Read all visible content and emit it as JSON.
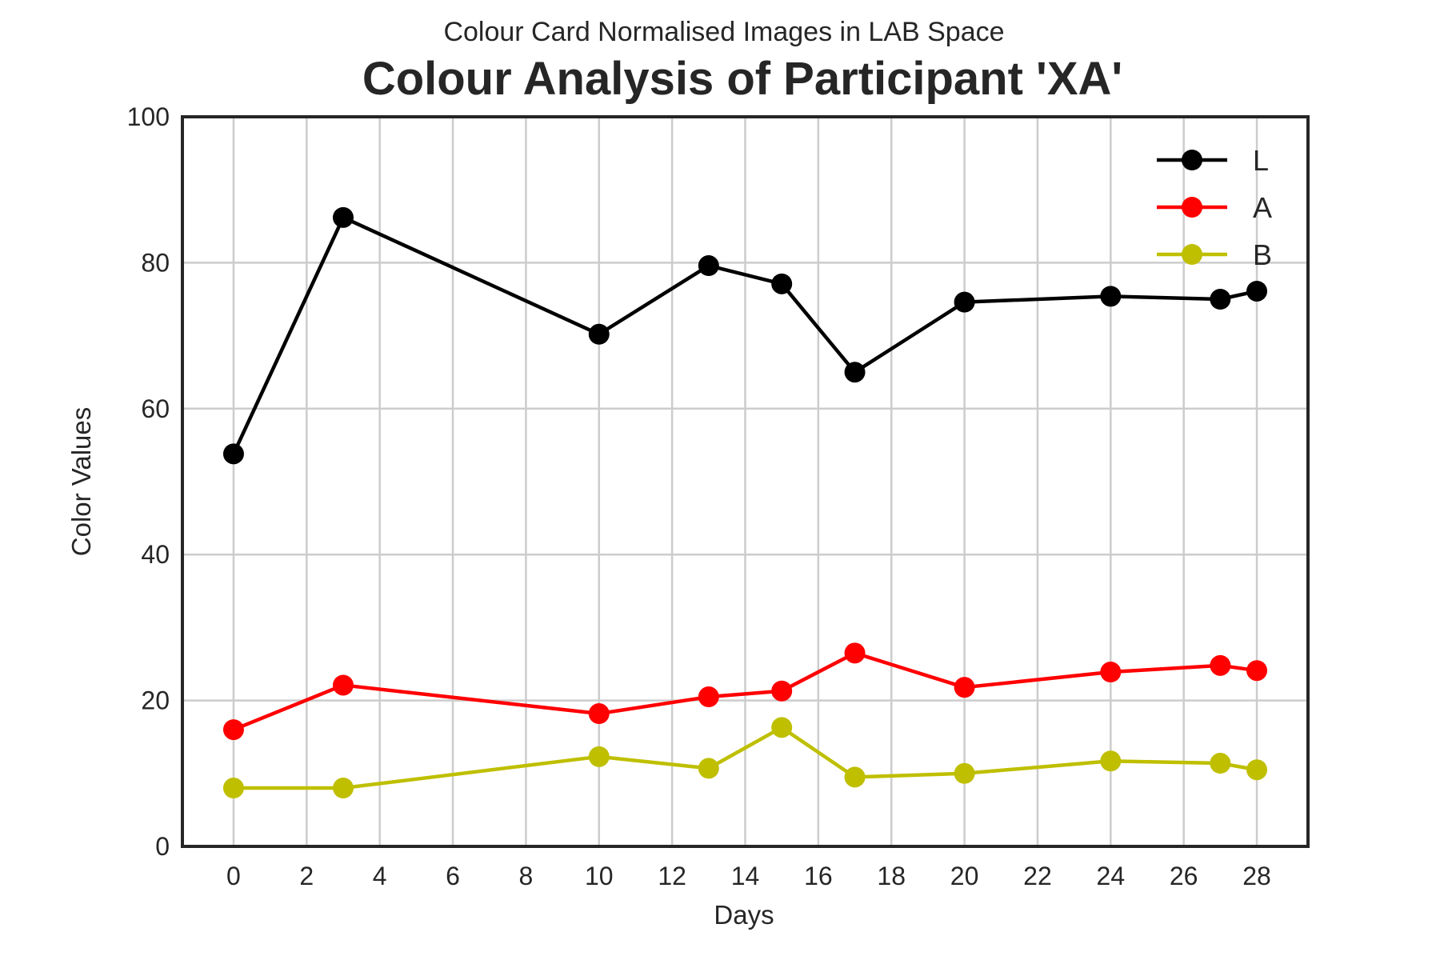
{
  "chart_data": {
    "type": "line",
    "subtitle": "Colour Card Normalised Images in LAB Space",
    "title": "Colour Analysis of Participant 'XA'",
    "xlabel": "Days",
    "ylabel": "Color Values",
    "x": [
      0,
      3,
      10,
      13,
      15,
      17,
      20,
      24,
      27,
      28
    ],
    "xlim": [
      -1.4,
      29.4
    ],
    "ylim": [
      0,
      100
    ],
    "xticks": [
      0,
      2,
      4,
      6,
      8,
      10,
      12,
      14,
      16,
      18,
      20,
      22,
      24,
      26,
      28
    ],
    "yticks": [
      0,
      20,
      40,
      60,
      80,
      100
    ],
    "grid": true,
    "legend_position": "top-right",
    "series": [
      {
        "name": "L",
        "color": "#000000",
        "marker": "circle",
        "values": [
          53.8,
          86.2,
          70.2,
          79.6,
          77.1,
          65.0,
          74.6,
          75.4,
          75.0,
          76.1
        ]
      },
      {
        "name": "A",
        "color": "#ff0000",
        "marker": "circle",
        "values": [
          16.0,
          22.1,
          18.2,
          20.5,
          21.3,
          26.5,
          21.8,
          23.9,
          24.8,
          24.1
        ]
      },
      {
        "name": "B",
        "color": "#bfbf00",
        "marker": "circle",
        "values": [
          8.0,
          8.0,
          12.3,
          10.7,
          16.3,
          9.5,
          10.0,
          11.7,
          11.4,
          10.5
        ]
      }
    ]
  }
}
